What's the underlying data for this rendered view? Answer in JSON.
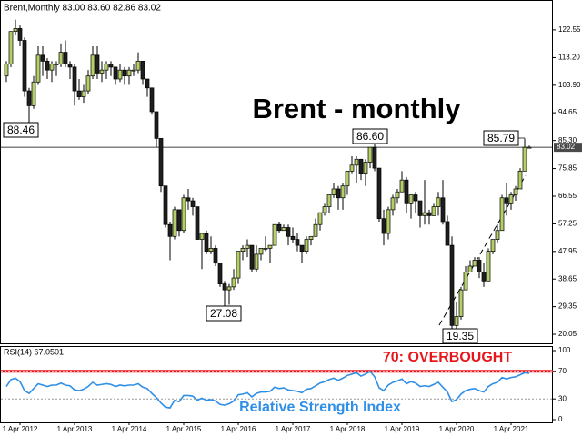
{
  "chart_data": {
    "type": "candlestick",
    "header": "Brent,Monthly 83.00 83.60 82.86 83.02",
    "title": "Brent - monthly",
    "up_color": "#b4cf6a",
    "down_color": "#1e1e1e",
    "candles": [
      [
        107,
        112,
        105,
        111
      ],
      [
        111,
        122,
        110,
        122
      ],
      [
        122,
        126,
        121,
        123
      ],
      [
        123,
        124,
        117,
        119
      ],
      [
        119,
        120,
        100,
        102
      ],
      [
        102,
        103,
        88.46,
        97
      ],
      [
        97,
        107,
        96,
        105
      ],
      [
        105,
        117,
        104,
        114
      ],
      [
        114,
        117,
        107,
        112
      ],
      [
        112,
        113,
        106,
        109
      ],
      [
        109,
        112,
        105,
        111
      ],
      [
        111,
        112,
        107,
        111
      ],
      [
        111,
        118,
        110,
        115
      ],
      [
        115,
        119,
        110,
        111
      ],
      [
        111,
        112,
        106,
        110
      ],
      [
        110,
        111,
        97,
        102
      ],
      [
        102,
        106,
        99,
        100
      ],
      [
        100,
        104,
        98,
        102
      ],
      [
        102,
        109,
        101,
        107
      ],
      [
        107,
        117,
        106,
        114
      ],
      [
        114,
        117,
        106,
        108
      ],
      [
        108,
        112,
        105,
        109
      ],
      [
        109,
        112,
        106,
        111
      ],
      [
        111,
        112,
        107,
        110
      ],
      [
        110,
        110,
        104,
        106
      ],
      [
        106,
        111,
        105,
        109
      ],
      [
        109,
        110,
        104,
        107
      ],
      [
        107,
        110,
        104,
        109
      ],
      [
        109,
        111,
        107,
        109
      ],
      [
        109,
        115,
        108,
        112
      ],
      [
        112,
        112,
        104,
        106
      ],
      [
        106,
        106,
        100,
        103
      ],
      [
        103,
        103,
        94,
        95
      ],
      [
        95,
        95,
        83,
        86
      ],
      [
        86,
        86,
        68,
        70
      ],
      [
        70,
        70,
        56,
        57
      ],
      [
        57,
        58,
        45,
        53
      ],
      [
        53,
        63,
        52,
        62
      ],
      [
        62,
        62,
        53,
        55
      ],
      [
        55,
        67,
        54,
        66
      ],
      [
        66,
        69,
        62,
        65
      ],
      [
        65,
        66,
        60,
        63
      ],
      [
        63,
        63,
        52,
        52
      ],
      [
        52,
        54,
        42,
        54
      ],
      [
        54,
        55,
        47,
        48
      ],
      [
        48,
        53,
        47,
        49
      ],
      [
        49,
        50,
        43,
        44
      ],
      [
        44,
        44,
        36,
        37
      ],
      [
        37,
        38,
        27.08,
        35
      ],
      [
        35,
        37,
        30,
        36
      ],
      [
        36,
        42,
        35,
        39
      ],
      [
        39,
        48,
        37,
        48
      ],
      [
        48,
        50,
        45,
        49
      ],
      [
        49,
        52,
        46,
        50
      ],
      [
        50,
        50,
        41,
        42
      ],
      [
        42,
        50,
        41,
        47
      ],
      [
        47,
        49,
        45,
        49
      ],
      [
        49,
        53,
        48,
        49
      ],
      [
        49,
        50,
        44,
        50
      ],
      [
        50,
        57,
        50,
        57
      ],
      [
        57,
        58,
        54,
        55
      ],
      [
        55,
        57,
        55,
        56
      ],
      [
        56,
        57,
        50,
        53
      ],
      [
        53,
        56,
        51,
        52
      ],
      [
        52,
        54,
        48,
        50
      ],
      [
        50,
        50,
        44,
        48
      ],
      [
        48,
        53,
        47,
        52
      ],
      [
        52,
        53,
        50,
        53
      ],
      [
        53,
        59,
        53,
        57
      ],
      [
        57,
        61,
        55,
        61
      ],
      [
        61,
        64,
        60,
        63
      ],
      [
        63,
        67,
        61,
        67
      ],
      [
        67,
        71,
        66,
        69
      ],
      [
        69,
        70,
        62,
        66
      ],
      [
        66,
        71,
        62,
        70
      ],
      [
        70,
        75,
        67,
        75
      ],
      [
        75,
        80,
        74,
        77
      ],
      [
        77,
        80,
        71,
        79
      ],
      [
        79,
        79,
        72,
        74
      ],
      [
        74,
        79,
        70,
        78
      ],
      [
        78,
        83,
        76,
        83
      ],
      [
        83,
        86.6,
        75,
        76
      ],
      [
        76,
        76,
        58,
        59
      ],
      [
        59,
        62,
        50,
        54
      ],
      [
        54,
        63,
        52,
        62
      ],
      [
        62,
        67,
        60,
        66
      ],
      [
        66,
        69,
        64,
        68
      ],
      [
        68,
        75,
        68,
        72
      ],
      [
        72,
        73,
        61,
        64
      ],
      [
        64,
        67,
        59,
        67
      ],
      [
        67,
        68,
        61,
        65
      ],
      [
        65,
        65,
        56,
        60
      ],
      [
        60,
        72,
        57,
        61
      ],
      [
        61,
        62,
        57,
        60
      ],
      [
        60,
        64,
        60,
        63
      ],
      [
        63,
        68,
        60,
        66
      ],
      [
        66,
        72,
        57,
        58
      ],
      [
        58,
        60,
        50,
        50
      ],
      [
        50,
        53,
        21,
        23
      ],
      [
        23,
        31,
        19.35,
        26
      ],
      [
        26,
        36,
        25,
        35
      ],
      [
        35,
        43,
        35,
        41
      ],
      [
        41,
        45,
        41,
        43
      ],
      [
        43,
        46,
        43,
        45
      ],
      [
        45,
        46,
        39,
        41
      ],
      [
        41,
        44,
        36,
        38
      ],
      [
        38,
        49,
        38,
        48
      ],
      [
        48,
        52,
        47,
        52
      ],
      [
        52,
        57,
        51,
        55
      ],
      [
        55,
        67,
        55,
        66
      ],
      [
        66,
        71,
        60,
        64
      ],
      [
        64,
        68,
        62,
        67
      ],
      [
        67,
        70,
        65,
        69
      ],
      [
        69,
        76,
        69,
        75
      ],
      [
        75,
        85.79,
        75,
        83
      ],
      [
        83.0,
        83.6,
        82.86,
        83.02
      ]
    ],
    "ylim": [
      17.0,
      132.3
    ],
    "yticks": [
      122.55,
      {
        "value": 113.2,
        "label": "113.20"
      },
      {
        "value": 103.9,
        "label": "103.90"
      },
      94.65,
      {
        "value": 85.3,
        "label": "85.30"
      },
      75.85,
      66.55,
      57.25,
      47.95,
      38.65,
      29.35,
      20.05
    ],
    "current_price": 83.02,
    "marked_prices": [
      88.46,
      27.08,
      {
        "value": 86.6,
        "label": "86.60"
      },
      19.35,
      85.79
    ],
    "xticks": [
      "1 Apr 2012",
      "1 Apr 2013",
      "1 Apr 2014",
      "1 Apr 2015",
      "1 Apr 2016",
      "1 Apr 2017",
      "1 Apr 2018",
      "1 Apr 2019",
      "1 Apr 2020",
      "1 Apr 2021"
    ],
    "rsi": {
      "title": "RSI(14) 67.0501",
      "color": "#2f8fe6",
      "ylim": [
        0,
        100
      ],
      "yticks": [
        100,
        70,
        30,
        0
      ],
      "overbought": 70,
      "oversold": 30,
      "values": [
        48,
        58,
        60,
        55,
        42,
        38,
        45,
        52,
        50,
        48,
        50,
        50,
        53,
        50,
        49,
        43,
        42,
        44,
        48,
        54,
        50,
        51,
        52,
        51,
        48,
        50,
        49,
        50,
        50,
        52,
        47,
        45,
        38,
        32,
        24,
        18,
        17,
        28,
        26,
        35,
        35,
        34,
        28,
        31,
        28,
        29,
        27,
        22,
        21,
        23,
        27,
        36,
        37,
        39,
        33,
        38,
        40,
        40,
        41,
        47,
        45,
        46,
        43,
        42,
        41,
        39,
        44,
        45,
        49,
        53,
        55,
        58,
        60,
        57,
        60,
        64,
        66,
        68,
        63,
        66,
        70,
        62,
        46,
        42,
        50,
        54,
        56,
        59,
        52,
        55,
        53,
        48,
        49,
        48,
        51,
        54,
        47,
        40,
        26,
        29,
        37,
        42,
        44,
        45,
        42,
        40,
        48,
        52,
        54,
        61,
        59,
        61,
        62,
        65,
        68,
        67.0501
      ]
    },
    "annotations": [
      "70: OVERBOUGHT",
      "Relative Strength Index"
    ]
  }
}
